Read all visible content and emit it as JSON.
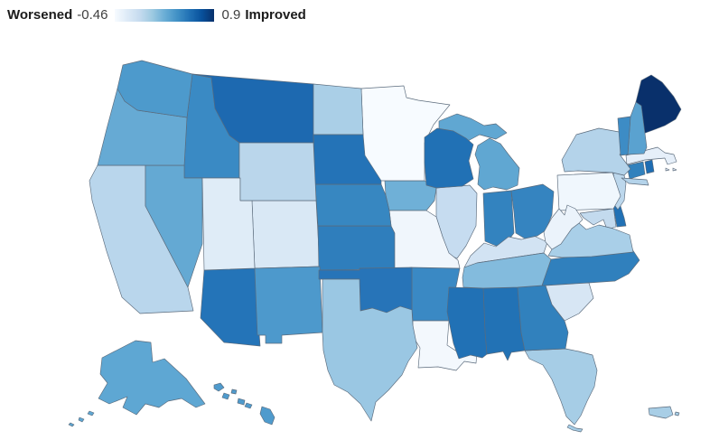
{
  "legend": {
    "left_label": "Worsened",
    "min": "-0.46",
    "max": "0.9",
    "right_label": "Improved",
    "gradient": [
      "#f7fbff",
      "#deebf7",
      "#c6dbef",
      "#9ecae1",
      "#6baed6",
      "#4292c6",
      "#2171b5",
      "#08519c",
      "#08306b"
    ]
  },
  "colors": {
    "background": "#ffffff",
    "state_border": "#5b6b7c",
    "legend_label_text": "#1b1b1b",
    "legend_number_text": "#3f3f3f",
    "scale_min_color": "#f7fbff",
    "scale_max_color": "#08306b"
  },
  "chart_data": {
    "type": "choropleth",
    "region": "United States (states, Alaska, Hawaii, Puerto Rico insets)",
    "scale": {
      "min": -0.46,
      "max": 0.9,
      "min_label": "Worsened",
      "max_label": "Improved",
      "palette": "sequential blues",
      "legend_position": "top-left"
    },
    "states": [
      {
        "abbr": "AL",
        "name": "Alabama",
        "fill": "#2272b5",
        "value_est": 0.56
      },
      {
        "abbr": "AK",
        "name": "Alaska",
        "fill": "#5ea7d3",
        "value_est": 0.25
      },
      {
        "abbr": "AZ",
        "name": "Arizona",
        "fill": "#2474b8",
        "value_est": 0.56
      },
      {
        "abbr": "AR",
        "name": "Arkansas",
        "fill": "#3a89c4",
        "value_est": 0.41
      },
      {
        "abbr": "CA",
        "name": "California",
        "fill": "#b9d6ec",
        "value_est": -0.12
      },
      {
        "abbr": "CO",
        "name": "Colorado",
        "fill": "#d9e8f5",
        "value_est": -0.28
      },
      {
        "abbr": "CT",
        "name": "Connecticut",
        "fill": "#3181bd",
        "value_est": 0.46
      },
      {
        "abbr": "DE",
        "name": "Delaware",
        "fill": "#2171b5",
        "value_est": 0.56
      },
      {
        "abbr": "FL",
        "name": "Florida",
        "fill": "#a6cde6",
        "value_est": -0.04
      },
      {
        "abbr": "GA",
        "name": "Georgia",
        "fill": "#3181bd",
        "value_est": 0.46
      },
      {
        "abbr": "HI",
        "name": "Hawaii",
        "fill": "#4f9bcd",
        "value_est": 0.33
      },
      {
        "abbr": "ID",
        "name": "Idaho",
        "fill": "#3a8ac4",
        "value_est": 0.41
      },
      {
        "abbr": "IL",
        "name": "Illinois",
        "fill": "#c6dcf0",
        "value_est": -0.19
      },
      {
        "abbr": "IN",
        "name": "Indiana",
        "fill": "#3383bf",
        "value_est": 0.46
      },
      {
        "abbr": "IA",
        "name": "Iowa",
        "fill": "#6fb0d7",
        "value_est": 0.19
      },
      {
        "abbr": "KS",
        "name": "Kansas",
        "fill": "#2f7ebc",
        "value_est": 0.49
      },
      {
        "abbr": "KY",
        "name": "Kentucky",
        "fill": "#d2e3f3",
        "value_est": -0.26
      },
      {
        "abbr": "LA",
        "name": "Louisiana",
        "fill": "#f3f8fd",
        "value_est": -0.42
      },
      {
        "abbr": "ME",
        "name": "Maine",
        "fill": "#09306b",
        "value_est": 0.9
      },
      {
        "abbr": "MD",
        "name": "Maryland",
        "fill": "#c3daee",
        "value_est": -0.19
      },
      {
        "abbr": "MA",
        "name": "Massachusetts",
        "fill": "#e6eff9",
        "value_est": -0.35
      },
      {
        "abbr": "MI",
        "name": "Michigan",
        "fill": "#60a7d2",
        "value_est": 0.25
      },
      {
        "abbr": "MN",
        "name": "Minnesota",
        "fill": "#f7fbff",
        "value_est": -0.45
      },
      {
        "abbr": "MS",
        "name": "Mississippi",
        "fill": "#2171b5",
        "value_est": 0.56
      },
      {
        "abbr": "MO",
        "name": "Missouri",
        "fill": "#f0f6fc",
        "value_est": -0.4
      },
      {
        "abbr": "MT",
        "name": "Montana",
        "fill": "#1d69b0",
        "value_est": 0.63
      },
      {
        "abbr": "NE",
        "name": "Nebraska",
        "fill": "#3787c1",
        "value_est": 0.41
      },
      {
        "abbr": "NV",
        "name": "Nevada",
        "fill": "#64a9d3",
        "value_est": 0.25
      },
      {
        "abbr": "NH",
        "name": "New Hampshire",
        "fill": "#5aa2d0",
        "value_est": 0.25
      },
      {
        "abbr": "NJ",
        "name": "New Jersey",
        "fill": "#bcd7ec",
        "value_est": -0.12
      },
      {
        "abbr": "NM",
        "name": "New Mexico",
        "fill": "#4d99cc",
        "value_est": 0.33
      },
      {
        "abbr": "NY",
        "name": "New York",
        "fill": "#b4d3ea",
        "value_est": -0.12
      },
      {
        "abbr": "NC",
        "name": "North Carolina",
        "fill": "#3080bd",
        "value_est": 0.46
      },
      {
        "abbr": "ND",
        "name": "North Dakota",
        "fill": "#aacfe7",
        "value_est": -0.04
      },
      {
        "abbr": "OH",
        "name": "Ohio",
        "fill": "#3584c0",
        "value_est": 0.46
      },
      {
        "abbr": "OK",
        "name": "Oklahoma",
        "fill": "#2774b8",
        "value_est": 0.56
      },
      {
        "abbr": "OR",
        "name": "Oregon",
        "fill": "#66aad4",
        "value_est": 0.25
      },
      {
        "abbr": "PA",
        "name": "Pennsylvania",
        "fill": "#f0f7fd",
        "value_est": -0.42
      },
      {
        "abbr": "RI",
        "name": "Rhode Island",
        "fill": "#1e6db3",
        "value_est": 0.63
      },
      {
        "abbr": "SC",
        "name": "South Carolina",
        "fill": "#d7e6f4",
        "value_est": -0.28
      },
      {
        "abbr": "SD",
        "name": "South Dakota",
        "fill": "#2473b7",
        "value_est": 0.56
      },
      {
        "abbr": "TN",
        "name": "Tennessee",
        "fill": "#83bbdd",
        "value_est": 0.11
      },
      {
        "abbr": "TX",
        "name": "Texas",
        "fill": "#9ac7e3",
        "value_est": 0.03
      },
      {
        "abbr": "UT",
        "name": "Utah",
        "fill": "#dfecf7",
        "value_est": -0.32
      },
      {
        "abbr": "VT",
        "name": "Vermont",
        "fill": "#3d8cc5",
        "value_est": 0.41
      },
      {
        "abbr": "VA",
        "name": "Virginia",
        "fill": "#a9cfe8",
        "value_est": -0.04
      },
      {
        "abbr": "WA",
        "name": "Washington",
        "fill": "#4d9acc",
        "value_est": 0.33
      },
      {
        "abbr": "WV",
        "name": "West Virginia",
        "fill": "#ebf3fb",
        "value_est": -0.38
      },
      {
        "abbr": "WI",
        "name": "Wisconsin",
        "fill": "#2171b5",
        "value_est": 0.56
      },
      {
        "abbr": "WY",
        "name": "Wyoming",
        "fill": "#bad6eb",
        "value_est": -0.12
      },
      {
        "abbr": "PR",
        "name": "Puerto Rico",
        "fill": "#a8cee6",
        "value_est": -0.04
      }
    ]
  }
}
